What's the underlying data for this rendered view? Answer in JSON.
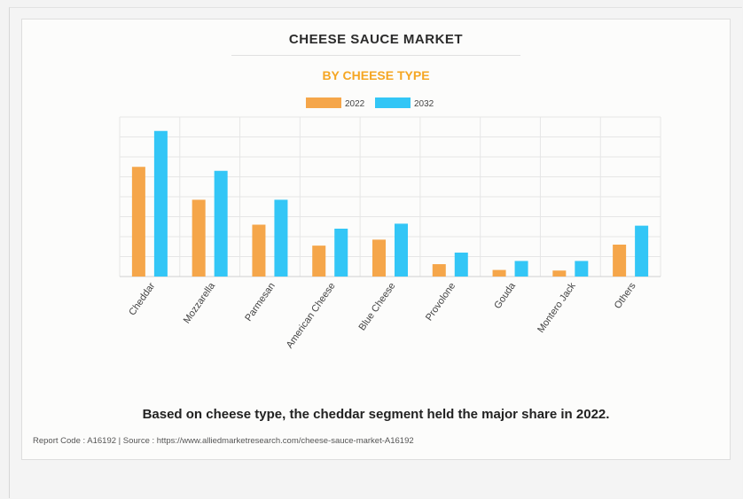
{
  "title": "CHEESE SAUCE MARKET",
  "subtitle": "BY CHEESE TYPE",
  "colors": {
    "2022": "#f5a64a",
    "2032": "#33c6f6"
  },
  "chart_data": {
    "type": "bar",
    "categories": [
      "Cheddar",
      "Mozzarella",
      "Parmesan",
      "American Cheese",
      "Blue Cheese",
      "Provolone",
      "Gouda",
      "Montero Jack",
      "Others"
    ],
    "series": [
      {
        "name": "2022",
        "values": [
          5.5,
          3.85,
          2.6,
          1.55,
          1.85,
          0.62,
          0.33,
          0.3,
          1.6
        ]
      },
      {
        "name": "2032",
        "values": [
          7.3,
          5.3,
          3.85,
          2.4,
          2.65,
          1.2,
          0.78,
          0.78,
          2.55
        ]
      }
    ],
    "ylim": [
      0,
      8
    ],
    "grid": true,
    "legend_position": "top-center",
    "xtick_rotation": -55
  },
  "caption": "Based on cheese type, the cheddar segment held the major share in 2022.",
  "report": "Report Code : A16192  |  Source : https://www.alliedmarketresearch.com/cheese-sauce-market-A16192"
}
